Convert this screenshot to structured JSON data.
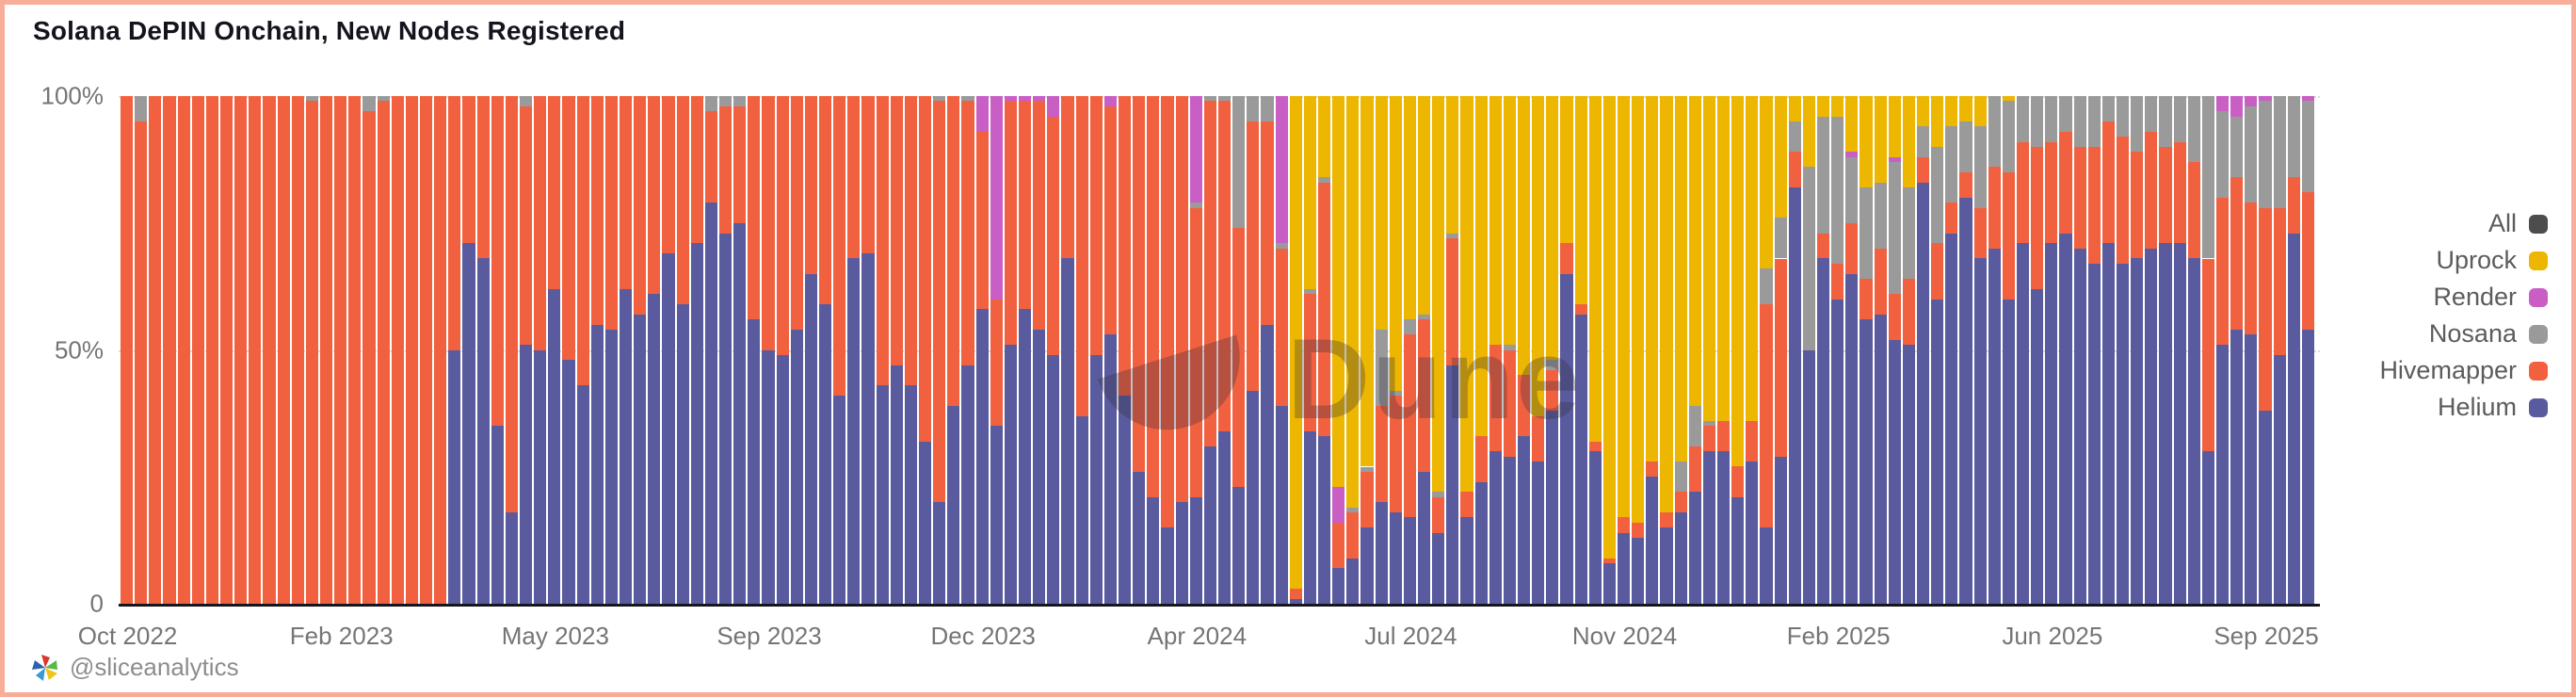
{
  "header": {
    "title": "Solana DePIN Onchain, New Nodes Registered"
  },
  "footer": {
    "handle": "@sliceanalytics"
  },
  "watermark": {
    "text": "Dune"
  },
  "legend": {
    "items": [
      {
        "label": "All",
        "color": "#4d4d4d"
      },
      {
        "label": "Uprock",
        "color": "#edb601"
      },
      {
        "label": "Render",
        "color": "#c95fc5"
      },
      {
        "label": "Nosana",
        "color": "#9a9a9a"
      },
      {
        "label": "Hivemapper",
        "color": "#f2613f"
      },
      {
        "label": "Helium",
        "color": "#5a5b9e"
      }
    ]
  },
  "chart_data": {
    "type": "bar",
    "stacked": true,
    "percent_stacked": true,
    "title": "Solana DePIN Onchain, New Nodes Registered",
    "granularity": "weekly",
    "first_week": "2022-10-31",
    "week_step_days": 7,
    "grid": "dotted line at 50%",
    "legend_position": "right",
    "y_axis": {
      "range": [
        0,
        100
      ],
      "ticks": [
        {
          "value": 100,
          "label": "100%"
        },
        {
          "value": 50,
          "label": "50%"
        },
        {
          "value": 0,
          "label": "0"
        }
      ]
    },
    "x_axis": {
      "tick_indices": [
        0,
        15,
        30,
        45,
        60,
        75,
        90,
        105,
        120,
        135,
        150
      ],
      "tick_labels": [
        "Oct 2022",
        "Feb 2023",
        "May 2023",
        "Sep 2023",
        "Dec 2023",
        "Apr 2024",
        "Jul 2024",
        "Nov 2024",
        "Feb 2025",
        "Jun 2025",
        "Sep 2025"
      ]
    },
    "series_bottom_to_top": [
      "Helium",
      "Hivemapper",
      "Nosana",
      "Render",
      "Uprock"
    ],
    "series_colors": [
      "#5a5b9e",
      "#f2613f",
      "#9a9a9a",
      "#c95fc5",
      "#edb601"
    ],
    "bars_pct": [
      [
        0,
        100,
        0,
        0,
        0
      ],
      [
        0,
        95,
        5,
        0,
        0
      ],
      [
        0,
        100,
        0,
        0,
        0
      ],
      [
        0,
        100,
        0,
        0,
        0
      ],
      [
        0,
        100,
        0,
        0,
        0
      ],
      [
        0,
        100,
        0,
        0,
        0
      ],
      [
        0,
        100,
        0,
        0,
        0
      ],
      [
        0,
        100,
        0,
        0,
        0
      ],
      [
        0,
        100,
        0,
        0,
        0
      ],
      [
        0,
        100,
        0,
        0,
        0
      ],
      [
        0,
        100,
        0,
        0,
        0
      ],
      [
        0,
        100,
        0,
        0,
        0
      ],
      [
        0,
        100,
        0,
        0,
        0
      ],
      [
        0,
        99,
        1,
        0,
        0
      ],
      [
        0,
        100,
        0,
        0,
        0
      ],
      [
        0,
        100,
        0,
        0,
        0
      ],
      [
        0,
        100,
        0,
        0,
        0
      ],
      [
        0,
        97,
        3,
        0,
        0
      ],
      [
        0,
        99,
        1,
        0,
        0
      ],
      [
        0,
        100,
        0,
        0,
        0
      ],
      [
        0,
        100,
        0,
        0,
        0
      ],
      [
        0,
        100,
        0,
        0,
        0
      ],
      [
        0,
        100,
        0,
        0,
        0
      ],
      [
        50,
        50,
        0,
        0,
        0
      ],
      [
        71,
        29,
        0,
        0,
        0
      ],
      [
        68,
        32,
        0,
        0,
        0
      ],
      [
        35,
        65,
        0,
        0,
        0
      ],
      [
        18,
        82,
        0,
        0,
        0
      ],
      [
        51,
        47,
        2,
        0,
        0
      ],
      [
        50,
        50,
        0,
        0,
        0
      ],
      [
        62,
        38,
        0,
        0,
        0
      ],
      [
        48,
        52,
        0,
        0,
        0
      ],
      [
        43,
        57,
        0,
        0,
        0
      ],
      [
        55,
        45,
        0,
        0,
        0
      ],
      [
        54,
        46,
        0,
        0,
        0
      ],
      [
        62,
        38,
        0,
        0,
        0
      ],
      [
        57,
        43,
        0,
        0,
        0
      ],
      [
        61,
        39,
        0,
        0,
        0
      ],
      [
        69,
        31,
        0,
        0,
        0
      ],
      [
        59,
        41,
        0,
        0,
        0
      ],
      [
        71,
        29,
        0,
        0,
        0
      ],
      [
        79,
        18,
        3,
        0,
        0
      ],
      [
        73,
        25,
        2,
        0,
        0
      ],
      [
        75,
        23,
        2,
        0,
        0
      ],
      [
        56,
        44,
        0,
        0,
        0
      ],
      [
        50,
        50,
        0,
        0,
        0
      ],
      [
        49,
        51,
        0,
        0,
        0
      ],
      [
        54,
        46,
        0,
        0,
        0
      ],
      [
        65,
        35,
        0,
        0,
        0
      ],
      [
        59,
        41,
        0,
        0,
        0
      ],
      [
        41,
        59,
        0,
        0,
        0
      ],
      [
        68,
        32,
        0,
        0,
        0
      ],
      [
        69,
        31,
        0,
        0,
        0
      ],
      [
        43,
        57,
        0,
        0,
        0
      ],
      [
        47,
        53,
        0,
        0,
        0
      ],
      [
        43,
        57,
        0,
        0,
        0
      ],
      [
        32,
        68,
        0,
        0,
        0
      ],
      [
        20,
        79,
        1,
        0,
        0
      ],
      [
        39,
        61,
        0,
        0,
        0
      ],
      [
        47,
        52,
        1,
        0,
        0
      ],
      [
        58,
        35,
        0,
        7,
        0
      ],
      [
        35,
        25,
        0,
        40,
        0
      ],
      [
        51,
        48,
        0,
        1,
        0
      ],
      [
        58,
        41,
        0,
        1,
        0
      ],
      [
        54,
        45,
        0,
        1,
        0
      ],
      [
        49,
        47,
        0,
        4,
        0
      ],
      [
        68,
        32,
        0,
        0,
        0
      ],
      [
        37,
        63,
        0,
        0,
        0
      ],
      [
        49,
        51,
        0,
        0,
        0
      ],
      [
        53,
        45,
        0,
        2,
        0
      ],
      [
        41,
        59,
        0,
        0,
        0
      ],
      [
        26,
        74,
        0,
        0,
        0
      ],
      [
        21,
        79,
        0,
        0,
        0
      ],
      [
        15,
        85,
        0,
        0,
        0
      ],
      [
        20,
        80,
        0,
        0,
        0
      ],
      [
        21,
        57,
        1,
        21,
        0
      ],
      [
        31,
        68,
        1,
        0,
        0
      ],
      [
        34,
        65,
        1,
        0,
        0
      ],
      [
        23,
        51,
        26,
        0,
        0
      ],
      [
        42,
        53,
        5,
        0,
        0
      ],
      [
        55,
        40,
        5,
        0,
        0
      ],
      [
        39,
        31,
        1,
        29,
        0
      ],
      [
        1,
        2,
        0,
        0,
        97
      ],
      [
        34,
        27,
        1,
        0,
        38
      ],
      [
        33,
        50,
        1,
        0,
        16
      ],
      [
        7,
        9,
        0,
        7,
        77
      ],
      [
        9,
        9,
        1,
        0,
        81
      ],
      [
        15,
        11,
        1,
        0,
        73
      ],
      [
        20,
        19,
        15,
        0,
        46
      ],
      [
        18,
        23,
        1,
        0,
        58
      ],
      [
        17,
        36,
        3,
        0,
        44
      ],
      [
        26,
        30,
        1,
        0,
        43
      ],
      [
        14,
        7,
        1,
        0,
        78
      ],
      [
        47,
        25,
        1,
        0,
        27
      ],
      [
        17,
        5,
        0,
        0,
        78
      ],
      [
        24,
        9,
        0,
        0,
        67
      ],
      [
        30,
        21,
        0,
        0,
        49
      ],
      [
        29,
        21,
        1,
        0,
        49
      ],
      [
        33,
        12,
        0,
        0,
        55
      ],
      [
        28,
        9,
        0,
        0,
        63
      ],
      [
        38,
        8,
        2,
        0,
        52
      ],
      [
        65,
        6,
        0,
        0,
        29
      ],
      [
        57,
        2,
        0,
        0,
        41
      ],
      [
        30,
        2,
        0,
        0,
        68
      ],
      [
        8,
        1,
        0,
        0,
        91
      ],
      [
        14,
        3,
        0,
        0,
        83
      ],
      [
        13,
        3,
        0,
        0,
        84
      ],
      [
        25,
        3,
        0,
        0,
        72
      ],
      [
        15,
        3,
        0,
        0,
        82
      ],
      [
        18,
        4,
        6,
        0,
        72
      ],
      [
        22,
        9,
        8,
        0,
        61
      ],
      [
        30,
        5,
        1,
        0,
        64
      ],
      [
        30,
        6,
        0,
        0,
        64
      ],
      [
        21,
        6,
        0,
        0,
        73
      ],
      [
        28,
        8,
        0,
        0,
        64
      ],
      [
        15,
        44,
        7,
        0,
        34
      ],
      [
        29,
        39,
        8,
        0,
        24
      ],
      [
        82,
        7,
        6,
        0,
        5
      ],
      [
        50,
        0,
        36,
        0,
        14
      ],
      [
        68,
        5,
        23,
        0,
        4
      ],
      [
        60,
        7,
        29,
        0,
        4
      ],
      [
        65,
        10,
        13,
        1,
        11
      ],
      [
        56,
        8,
        18,
        0,
        18
      ],
      [
        57,
        13,
        13,
        0,
        17
      ],
      [
        52,
        9,
        26,
        1,
        12
      ],
      [
        51,
        13,
        18,
        0,
        18
      ],
      [
        83,
        5,
        6,
        0,
        6
      ],
      [
        60,
        11,
        19,
        0,
        10
      ],
      [
        73,
        6,
        15,
        0,
        6
      ],
      [
        80,
        5,
        10,
        0,
        5
      ],
      [
        68,
        10,
        16,
        0,
        6
      ],
      [
        70,
        16,
        14,
        0,
        0
      ],
      [
        60,
        25,
        14,
        0,
        1
      ],
      [
        71,
        20,
        9,
        0,
        0
      ],
      [
        62,
        28,
        10,
        0,
        0
      ],
      [
        71,
        20,
        9,
        0,
        0
      ],
      [
        73,
        20,
        7,
        0,
        0
      ],
      [
        70,
        20,
        10,
        0,
        0
      ],
      [
        67,
        23,
        10,
        0,
        0
      ],
      [
        71,
        24,
        5,
        0,
        0
      ],
      [
        67,
        25,
        8,
        0,
        0
      ],
      [
        68,
        21,
        11,
        0,
        0
      ],
      [
        70,
        23,
        7,
        0,
        0
      ],
      [
        71,
        19,
        10,
        0,
        0
      ],
      [
        71,
        20,
        9,
        0,
        0
      ],
      [
        68,
        19,
        13,
        0,
        0
      ],
      [
        30,
        38,
        32,
        0,
        0
      ],
      [
        51,
        29,
        17,
        3,
        0
      ],
      [
        54,
        30,
        12,
        4,
        0
      ],
      [
        53,
        26,
        19,
        2,
        0
      ],
      [
        38,
        40,
        21,
        1,
        0
      ],
      [
        49,
        29,
        22,
        0,
        0
      ],
      [
        73,
        11,
        16,
        0,
        0
      ],
      [
        54,
        27,
        18,
        1,
        0
      ]
    ]
  }
}
